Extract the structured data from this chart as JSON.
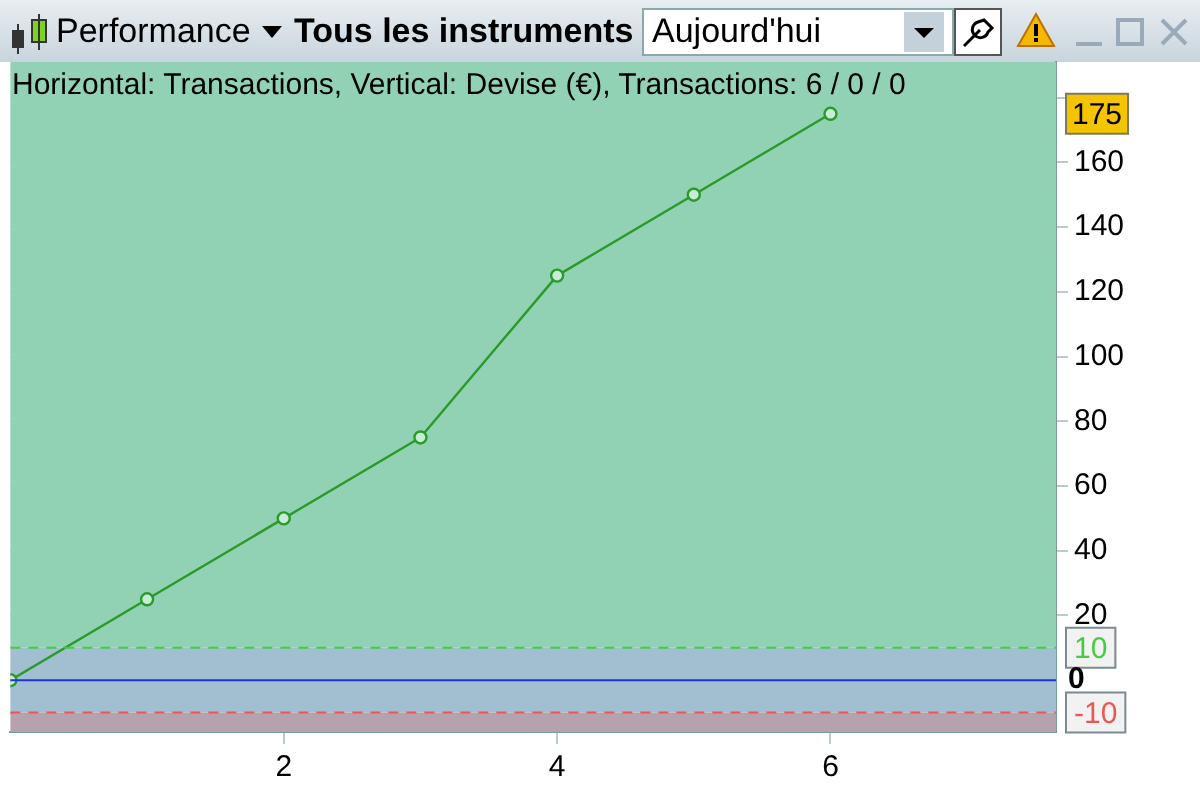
{
  "chart_data": {
    "type": "line",
    "title": "Horizontal: Transactions, Vertical: Devise (€), Transactions: 6 / 0 / 0",
    "annotations": [
      "Performance",
      "Tous les instruments",
      "Aujourd'hui",
      "175"
    ],
    "x": [
      0,
      1,
      2,
      3,
      4,
      5,
      6
    ],
    "series": [
      {
        "color": "#2a9a2a",
        "values": [
          0,
          25,
          50,
          75,
          125,
          150,
          175
        ]
      }
    ],
    "xlim": [
      0,
      7.65
    ],
    "xticks": [
      2,
      4,
      6
    ],
    "ylim": [
      -16,
      191
    ],
    "yticks": [
      20,
      40,
      60,
      80,
      100,
      120,
      140,
      160,
      {
        "value": 180,
        "label": null
      }
    ],
    "ref_lines": [
      {
        "axis": "y",
        "value": 10,
        "label": "10",
        "color": "#44cc44",
        "line_style": "dashed"
      },
      {
        "axis": "y",
        "value": 0,
        "label": "0",
        "color": "#2030e0",
        "line_style": "solid"
      },
      {
        "axis": "y",
        "value": -10,
        "label": "-10",
        "color": "#ee5555",
        "line_style": "dashed"
      }
    ],
    "bands": [
      {
        "axis": "y",
        "from": 10,
        "to": 191,
        "color": "#92d2b4"
      },
      {
        "axis": "y",
        "from": -10,
        "to": 10,
        "color": "#a2bfd2"
      },
      {
        "axis": "y",
        "from": -16,
        "to": -10,
        "color": "#b5a2ae"
      }
    ],
    "grid": true,
    "legend": false,
    "marker": "circle",
    "line_style": "solid"
  }
}
